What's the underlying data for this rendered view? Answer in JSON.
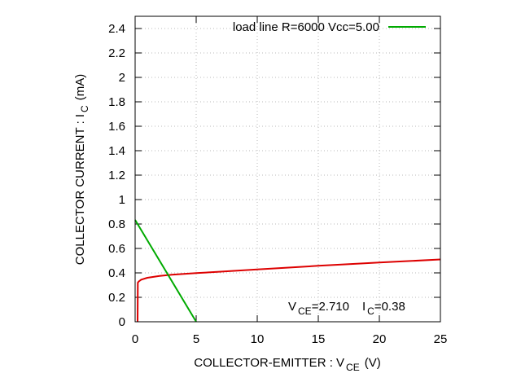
{
  "chart_data": {
    "type": "line",
    "xlim": [
      0,
      25
    ],
    "ylim": [
      0,
      2.5
    ],
    "xticks": [
      0,
      5,
      10,
      15,
      20,
      25
    ],
    "yticks": [
      0,
      0.2,
      0.4,
      0.6,
      0.8,
      1,
      1.2,
      1.4,
      1.6,
      1.8,
      2,
      2.2,
      2.4
    ],
    "grid": true,
    "legend_position": "top-right",
    "xlabel": {
      "main": "COLLECTOR-EMITTER : V",
      "sub": "CE",
      "unit": "(V)"
    },
    "ylabel": {
      "main": "COLLECTOR CURRENT : I",
      "sub": "C",
      "unit": "(mA)"
    },
    "series": [
      {
        "color": "#dd0000",
        "x": [
          0.2,
          0.22,
          0.3,
          0.5,
          1,
          2,
          3,
          4,
          5,
          7,
          10,
          12,
          15,
          18,
          20,
          22,
          25
        ],
        "y": [
          0,
          0.32,
          0.33,
          0.345,
          0.36,
          0.375,
          0.385,
          0.392,
          0.398,
          0.41,
          0.428,
          0.44,
          0.458,
          0.474,
          0.485,
          0.495,
          0.51
        ]
      },
      {
        "name": "load line  R=6000  Vcc=5.00",
        "color": "#00aa00",
        "x": [
          0,
          5
        ],
        "y": [
          0.8333,
          0
        ]
      }
    ],
    "annotation": {
      "v_main": "V",
      "v_sub": "CE",
      "v_value": "=2.710",
      "i_main": "I",
      "i_sub": "C",
      "i_value": "=0.38"
    }
  }
}
